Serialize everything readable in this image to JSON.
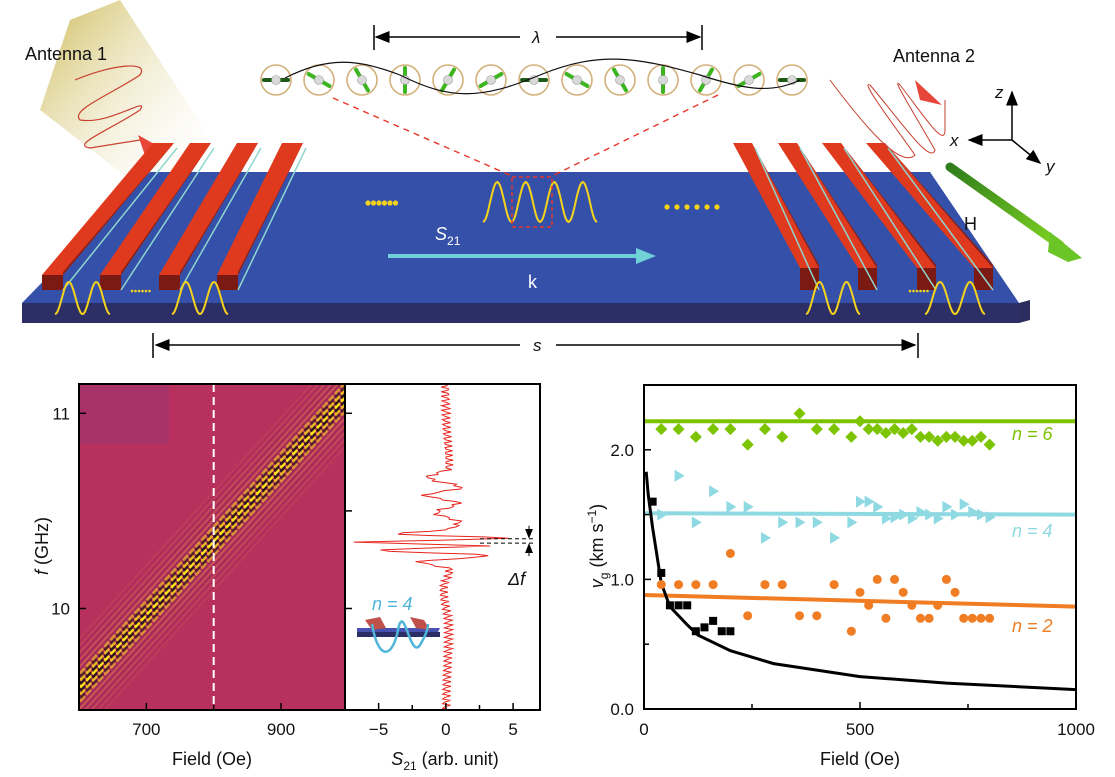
{
  "diagram": {
    "antenna1_label": "Antenna 1",
    "antenna2_label": "Antenna 2",
    "lambda_label": "λ",
    "s_label": "s",
    "s21_label_main": "S",
    "s21_label_sub": "21",
    "k_label": "k",
    "h_label": "H",
    "axis_x": "x",
    "axis_y": "y",
    "axis_z": "z",
    "colors": {
      "substrate": "#3550a8",
      "bars": "#e03a1e",
      "waves": "#f5d31c",
      "field_arrow": "#4fa82a",
      "k_arrow": "#6fd0d8"
    }
  },
  "chart_data": [
    {
      "type": "heatmap",
      "xlabel": "Field (Oe)",
      "ylabel_var": "f",
      "ylabel_unit": " (GHz)",
      "xlim": [
        600,
        995
      ],
      "ylim": [
        9.48,
        11.15
      ],
      "xticks": [
        {
          "value": 700,
          "label": "700"
        },
        {
          "value": 900,
          "label": "900"
        }
      ],
      "yticks": [
        {
          "value": 10,
          "label": "10"
        },
        {
          "value": 11,
          "label": "11"
        }
      ],
      "ridge": {
        "field": [
          600,
          995
        ],
        "f": [
          9.59,
          11.09
        ]
      },
      "dashed_marker_field": 800,
      "colors": {
        "background": "#b8305e",
        "high": "#ffe21a",
        "low": "#1a0d1a"
      }
    },
    {
      "type": "line",
      "xlabel_var": "S",
      "xlabel_sub": "21",
      "xlabel_unit": " (arb. unit)",
      "xlim": [
        -7.5,
        7
      ],
      "ylim": [
        9.48,
        11.15
      ],
      "xticks": [
        {
          "value": -5,
          "label": "−5"
        },
        {
          "value": 0,
          "label": "0"
        },
        {
          "value": 5,
          "label": "5"
        }
      ],
      "trace": [
        [
          9.48,
          0
        ],
        [
          9.9,
          0.2
        ],
        [
          10.1,
          -0.2
        ],
        [
          10.2,
          0.3
        ],
        [
          10.24,
          -1.9
        ],
        [
          10.27,
          3.2
        ],
        [
          10.3,
          -5.2
        ],
        [
          10.32,
          3.2
        ],
        [
          10.34,
          -6.6
        ],
        [
          10.36,
          5.0
        ],
        [
          10.38,
          -3.5
        ],
        [
          10.41,
          0.5
        ],
        [
          10.44,
          1.0
        ],
        [
          10.49,
          -0.7
        ],
        [
          10.54,
          0.9
        ],
        [
          10.58,
          -1.5
        ],
        [
          10.62,
          1.1
        ],
        [
          10.67,
          -1.3
        ],
        [
          10.72,
          0.2
        ],
        [
          11.0,
          0
        ],
        [
          11.15,
          0
        ]
      ],
      "delta_f_label": "Δf",
      "delta_f_levels": [
        10.335,
        10.357
      ],
      "inset_label": "n = 4",
      "color": "#e8231c"
    },
    {
      "type": "scatter",
      "xlabel": "Field (Oe)",
      "ylabel_var": "v",
      "ylabel_sub": "g",
      "ylabel_unit": " (km s",
      "ylabel_exp": "−1",
      "ylabel_close": ")",
      "xlim": [
        0,
        1000
      ],
      "ylim": [
        0,
        2.5
      ],
      "xticks": [
        {
          "value": 0,
          "label": "0"
        },
        {
          "value": 500,
          "label": "500"
        },
        {
          "value": 1000,
          "label": "1000"
        }
      ],
      "yticks": [
        {
          "value": 0,
          "label": "0.0"
        },
        {
          "value": 1,
          "label": "1.0"
        },
        {
          "value": 2,
          "label": "2.0"
        }
      ],
      "series": [
        {
          "name": "n = 6",
          "color": "#7cc300",
          "marker": "diamond",
          "x": [
            40,
            80,
            120,
            160,
            200,
            240,
            280,
            320,
            360,
            400,
            440,
            480,
            500,
            520,
            540,
            560,
            580,
            600,
            620,
            640,
            660,
            680,
            700,
            720,
            740,
            760,
            780,
            800
          ],
          "y": [
            2.16,
            2.16,
            2.1,
            2.16,
            2.16,
            2.04,
            2.16,
            2.1,
            2.28,
            2.16,
            2.16,
            2.1,
            2.22,
            2.16,
            2.16,
            2.13,
            2.16,
            2.13,
            2.16,
            2.1,
            2.1,
            2.07,
            2.1,
            2.1,
            2.07,
            2.07,
            2.1,
            2.04
          ],
          "fit": [
            [
              0,
              2.22
            ],
            [
              1000,
              2.22
            ]
          ]
        },
        {
          "name": "n = 4",
          "color": "#8fd9e2",
          "marker": "triangle-right",
          "x": [
            40,
            80,
            120,
            160,
            200,
            240,
            280,
            320,
            360,
            400,
            440,
            480,
            500,
            520,
            540,
            560,
            580,
            600,
            620,
            640,
            660,
            680,
            700,
            720,
            740,
            760,
            780,
            800
          ],
          "y": [
            1.5,
            1.8,
            1.44,
            1.68,
            1.56,
            1.56,
            1.32,
            1.44,
            1.44,
            1.44,
            1.32,
            1.44,
            1.6,
            1.6,
            1.56,
            1.47,
            1.48,
            1.5,
            1.47,
            1.52,
            1.5,
            1.47,
            1.56,
            1.5,
            1.58,
            1.52,
            1.5,
            1.48
          ],
          "fit": [
            [
              0,
              1.51
            ],
            [
              1000,
              1.5
            ]
          ]
        },
        {
          "name": "n = 2",
          "color": "#f07d23",
          "marker": "circle",
          "x": [
            40,
            80,
            120,
            160,
            200,
            240,
            280,
            320,
            360,
            400,
            440,
            480,
            500,
            520,
            540,
            560,
            580,
            600,
            620,
            640,
            660,
            680,
            700,
            720,
            740,
            760,
            780,
            800
          ],
          "y": [
            0.96,
            0.96,
            0.96,
            0.96,
            1.2,
            0.72,
            0.96,
            0.96,
            0.72,
            0.72,
            0.96,
            0.6,
            0.9,
            0.8,
            1.0,
            0.7,
            1.0,
            0.9,
            0.8,
            0.7,
            0.7,
            0.8,
            1.0,
            0.9,
            0.7,
            0.7,
            0.7,
            0.7
          ],
          "fit": [
            [
              0,
              0.88
            ],
            [
              1000,
              0.79
            ]
          ]
        },
        {
          "color": "#000000",
          "marker": "square",
          "x": [
            20,
            40,
            60,
            80,
            100,
            120,
            140,
            160,
            180,
            200
          ],
          "y": [
            1.6,
            1.05,
            0.8,
            0.8,
            0.8,
            0.6,
            0.63,
            0.68,
            0.6,
            0.6
          ],
          "fit": [
            [
              5,
              1.83
            ],
            [
              10,
              1.65
            ],
            [
              20,
              1.4
            ],
            [
              40,
              0.97
            ],
            [
              60,
              0.79
            ],
            [
              100,
              0.65
            ],
            [
              125,
              0.57
            ],
            [
              200,
              0.45
            ],
            [
              300,
              0.35
            ],
            [
              500,
              0.25
            ],
            [
              700,
              0.2
            ],
            [
              1000,
              0.15
            ]
          ]
        }
      ]
    }
  ]
}
